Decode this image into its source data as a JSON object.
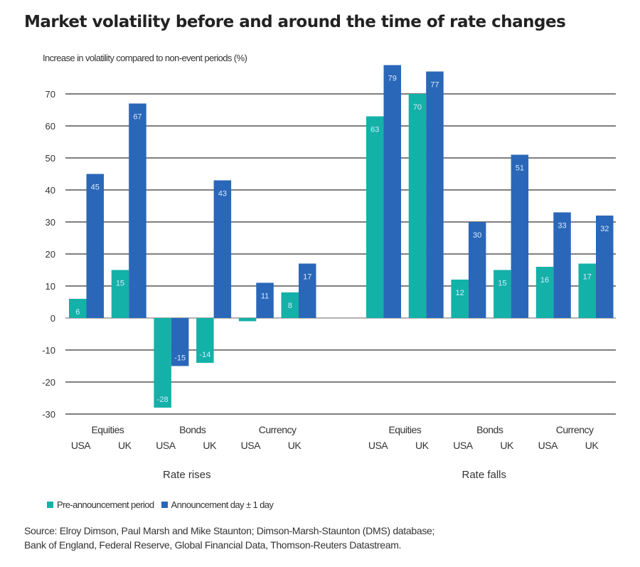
{
  "chart_data": {
    "type": "bar",
    "title": "Market volatility before and around the time of rate changes",
    "ylabel": "Increase in volatility compared to non-event periods (%)",
    "xlabel": "",
    "ylim": [
      -30,
      70
    ],
    "yticks": [
      70,
      60,
      50,
      40,
      30,
      20,
      10,
      0,
      -10,
      -20,
      -30
    ],
    "grid": true,
    "legend_position": "bottom-left",
    "groups": [
      {
        "label": "Rate rises",
        "assets": [
          {
            "label": "Equities",
            "countries": [
              "USA",
              "UK"
            ]
          },
          {
            "label": "Bonds",
            "countries": [
              "USA",
              "UK"
            ]
          },
          {
            "label": "Currency",
            "countries": [
              "USA",
              "UK"
            ]
          }
        ]
      },
      {
        "label": "Rate falls",
        "assets": [
          {
            "label": "Equities",
            "countries": [
              "USA",
              "UK"
            ]
          },
          {
            "label": "Bonds",
            "countries": [
              "USA",
              "UK"
            ]
          },
          {
            "label": "Currency",
            "countries": [
              "USA",
              "UK"
            ]
          }
        ]
      }
    ],
    "categories": [
      "Rate rises / Equities / USA",
      "Rate rises / Equities / UK",
      "Rate rises / Bonds / USA",
      "Rate rises / Bonds / UK",
      "Rate rises / Currency / USA",
      "Rate rises / Currency / UK",
      "Rate falls / Equities / USA",
      "Rate falls / Equities / UK",
      "Rate falls / Bonds / USA",
      "Rate falls / Bonds / UK",
      "Rate falls / Currency / USA",
      "Rate falls / Currency / UK"
    ],
    "series": [
      {
        "name": "Pre-announcement period",
        "color": "#14b1a8",
        "values": [
          6,
          15,
          -28,
          -14,
          -1,
          8,
          63,
          70,
          12,
          15,
          16,
          17
        ],
        "labels": [
          "6",
          "15",
          "-28",
          "-14",
          "",
          "8",
          "63",
          "70",
          "12",
          "15",
          "16",
          "17"
        ]
      },
      {
        "name": "Announcement day ± 1 day",
        "color": "#2a67b8",
        "values": [
          45,
          67,
          -15,
          43,
          11,
          17,
          79,
          77,
          30,
          51,
          33,
          32
        ],
        "labels": [
          "45",
          "67",
          "-15",
          "43",
          "11",
          "17",
          "79",
          "77",
          "30",
          "51",
          "33",
          "32"
        ]
      }
    ]
  },
  "source": {
    "line1": "Source: Elroy Dimson, Paul Marsh and Mike Staunton; Dimson-Marsh-Staunton (DMS) database;",
    "line2": "Bank of England, Federal Reserve, Global Financial Data, Thomson-Reuters Datastream."
  }
}
